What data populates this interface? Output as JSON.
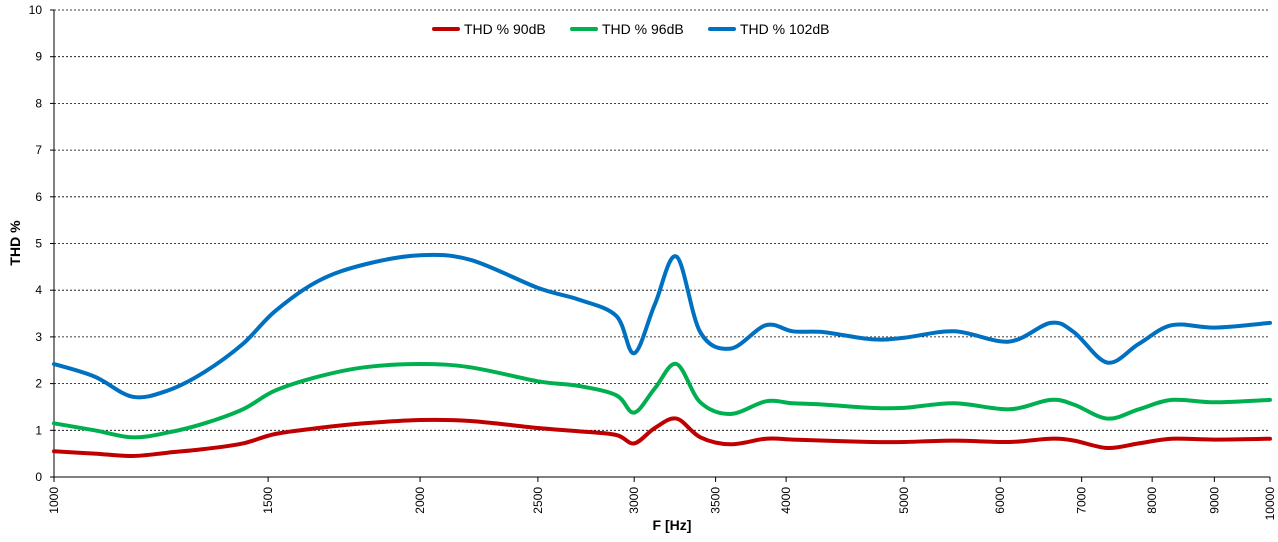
{
  "chart_data": {
    "type": "line",
    "xlabel": "F [Hz]",
    "ylabel": "THD %",
    "xscale": "log",
    "xlim": [
      1000,
      10000
    ],
    "ylim": [
      0,
      10
    ],
    "grid": true,
    "legend_position": "top-center",
    "yticks": [
      "0",
      "1",
      "2",
      "3",
      "4",
      "5",
      "6",
      "7",
      "8",
      "9",
      "10"
    ],
    "xticks": [
      "1000",
      "1500",
      "2000",
      "2500",
      "3000",
      "3500",
      "4000",
      "5000",
      "6000",
      "7000",
      "8000",
      "9000",
      "10000"
    ],
    "series": [
      {
        "name": "THD % 90dB",
        "color": "#c00000",
        "x": [
          1000,
          1080,
          1160,
          1240,
          1330,
          1430,
          1520,
          1650,
          1800,
          2000,
          2200,
          2500,
          2700,
          2900,
          3000,
          3120,
          3250,
          3400,
          3600,
          3850,
          4050,
          4300,
          4700,
          5000,
          5500,
          6100,
          6600,
          6900,
          7350,
          7800,
          8300,
          9000,
          10000
        ],
        "y": [
          0.55,
          0.5,
          0.45,
          0.52,
          0.6,
          0.72,
          0.92,
          1.05,
          1.15,
          1.22,
          1.2,
          1.05,
          0.98,
          0.9,
          0.72,
          1.05,
          1.25,
          0.85,
          0.7,
          0.82,
          0.8,
          0.78,
          0.75,
          0.75,
          0.78,
          0.75,
          0.82,
          0.78,
          0.62,
          0.72,
          0.82,
          0.8,
          0.82
        ]
      },
      {
        "name": "THD % 96dB",
        "color": "#00b050",
        "x": [
          1000,
          1080,
          1160,
          1240,
          1330,
          1430,
          1520,
          1650,
          1800,
          2000,
          2200,
          2500,
          2700,
          2900,
          3000,
          3120,
          3250,
          3400,
          3600,
          3850,
          4050,
          4300,
          4700,
          5000,
          5500,
          6100,
          6600,
          6900,
          7350,
          7800,
          8300,
          9000,
          10000
        ],
        "y": [
          1.15,
          1.0,
          0.85,
          0.95,
          1.15,
          1.45,
          1.85,
          2.15,
          2.35,
          2.42,
          2.35,
          2.05,
          1.95,
          1.75,
          1.38,
          1.9,
          2.42,
          1.6,
          1.35,
          1.62,
          1.58,
          1.55,
          1.48,
          1.48,
          1.58,
          1.45,
          1.65,
          1.55,
          1.25,
          1.45,
          1.65,
          1.6,
          1.65
        ]
      },
      {
        "name": "THD % 102dB",
        "color": "#0070c0",
        "x": [
          1000,
          1080,
          1160,
          1240,
          1330,
          1430,
          1520,
          1650,
          1800,
          2000,
          2200,
          2500,
          2700,
          2900,
          3000,
          3120,
          3250,
          3400,
          3600,
          3850,
          4050,
          4300,
          4700,
          5000,
          5500,
          6100,
          6600,
          6900,
          7350,
          7800,
          8300,
          9000,
          10000
        ],
        "y": [
          2.42,
          2.15,
          1.72,
          1.85,
          2.25,
          2.85,
          3.55,
          4.2,
          4.55,
          4.75,
          4.65,
          4.05,
          3.8,
          3.45,
          2.65,
          3.7,
          4.72,
          3.1,
          2.75,
          3.25,
          3.12,
          3.1,
          2.95,
          2.98,
          3.12,
          2.9,
          3.3,
          3.1,
          2.45,
          2.85,
          3.25,
          3.2,
          3.3
        ]
      }
    ]
  }
}
